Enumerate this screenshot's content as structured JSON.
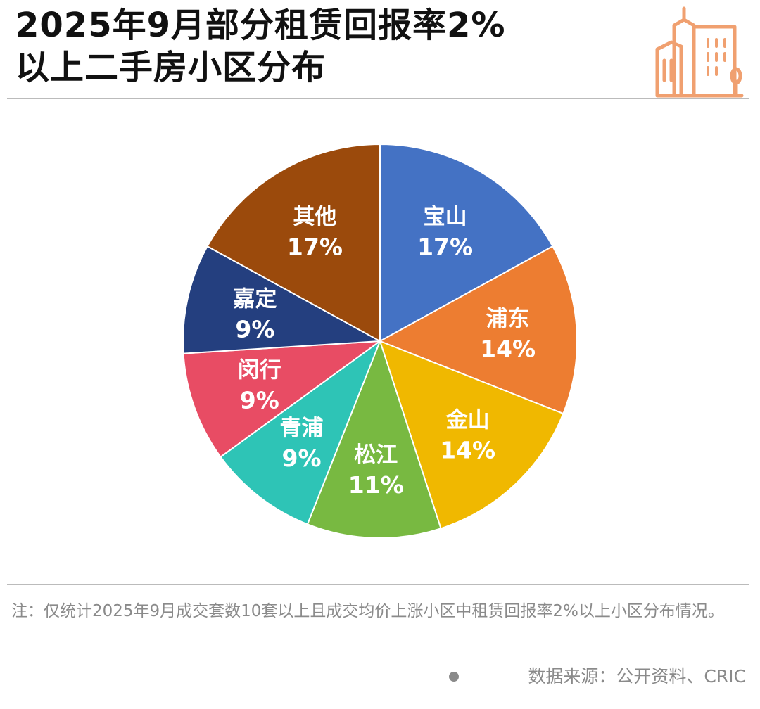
{
  "title": {
    "line1": "2025年9月部分租赁回报率2%",
    "line2": "以上二手房小区分布"
  },
  "chart_data": {
    "type": "pie",
    "title": "2025年9月部分租赁回报率2%以上二手房小区分布",
    "categories": [
      "宝山",
      "浦东",
      "金山",
      "松江",
      "青浦",
      "闵行",
      "嘉定",
      "其他"
    ],
    "values": [
      17,
      14,
      14,
      11,
      9,
      9,
      9,
      17
    ],
    "labels": [
      "17%",
      "14%",
      "14%",
      "11%",
      "9%",
      "9%",
      "9%",
      "17%"
    ],
    "colors": [
      "#4472C4",
      "#ED7D31",
      "#F0B800",
      "#78B941",
      "#2EC4B6",
      "#E84C64",
      "#243F7F",
      "#9B4A0C"
    ],
    "start": "12 o'clock",
    "direction": "clockwise",
    "legend": "none"
  },
  "note": "注：仅统计2025年9月成交套数10套以上且成交均价上涨小区中租赁回报率2%以上小区分布情况。",
  "source": "数据来源：公开资料、CRIC",
  "icon": {
    "name": "building-icon",
    "color": "#F0A070"
  }
}
